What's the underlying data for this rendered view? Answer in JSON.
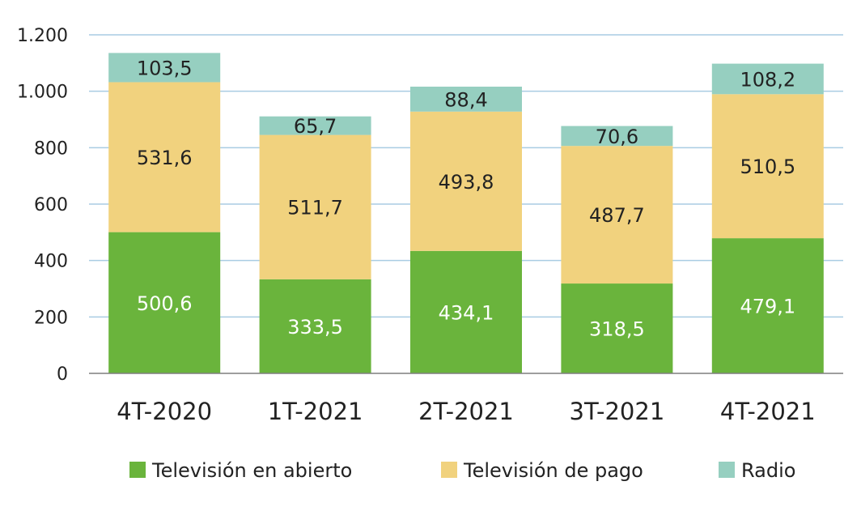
{
  "chart_data": {
    "type": "bar",
    "stacked": true,
    "categories": [
      "4T-2020",
      "1T-2021",
      "2T-2021",
      "3T-2021",
      "4T-2021"
    ],
    "series": [
      {
        "name": "Televisión en abierto",
        "color": "#6ab43c",
        "label_color": "#ffffff",
        "values": [
          500.6,
          333.5,
          434.1,
          318.5,
          479.1
        ]
      },
      {
        "name": "Televisión de pago",
        "color": "#f1d27e",
        "label_color": "#222222",
        "values": [
          531.6,
          511.7,
          493.8,
          487.7,
          510.5
        ]
      },
      {
        "name": "Radio",
        "color": "#96cfc0",
        "label_color": "#222222",
        "values": [
          103.5,
          65.7,
          88.4,
          70.6,
          108.2
        ]
      }
    ],
    "data_labels": [
      [
        "500,6",
        "333,5",
        "434,1",
        "318,5",
        "479,1"
      ],
      [
        "531,6",
        "511,7",
        "493,8",
        "487,7",
        "510,5"
      ],
      [
        "103,5",
        "65,7",
        "88,4",
        "70,6",
        "108,2"
      ]
    ],
    "ylim": [
      0,
      1200
    ],
    "yticks": [
      0,
      200,
      400,
      600,
      800,
      1000,
      1200
    ],
    "ytick_labels": [
      "0",
      "200",
      "400",
      "600",
      "800",
      "1.000",
      "1.200"
    ],
    "grid": true,
    "grid_color": "#a9cce3",
    "legend_position": "bottom"
  }
}
